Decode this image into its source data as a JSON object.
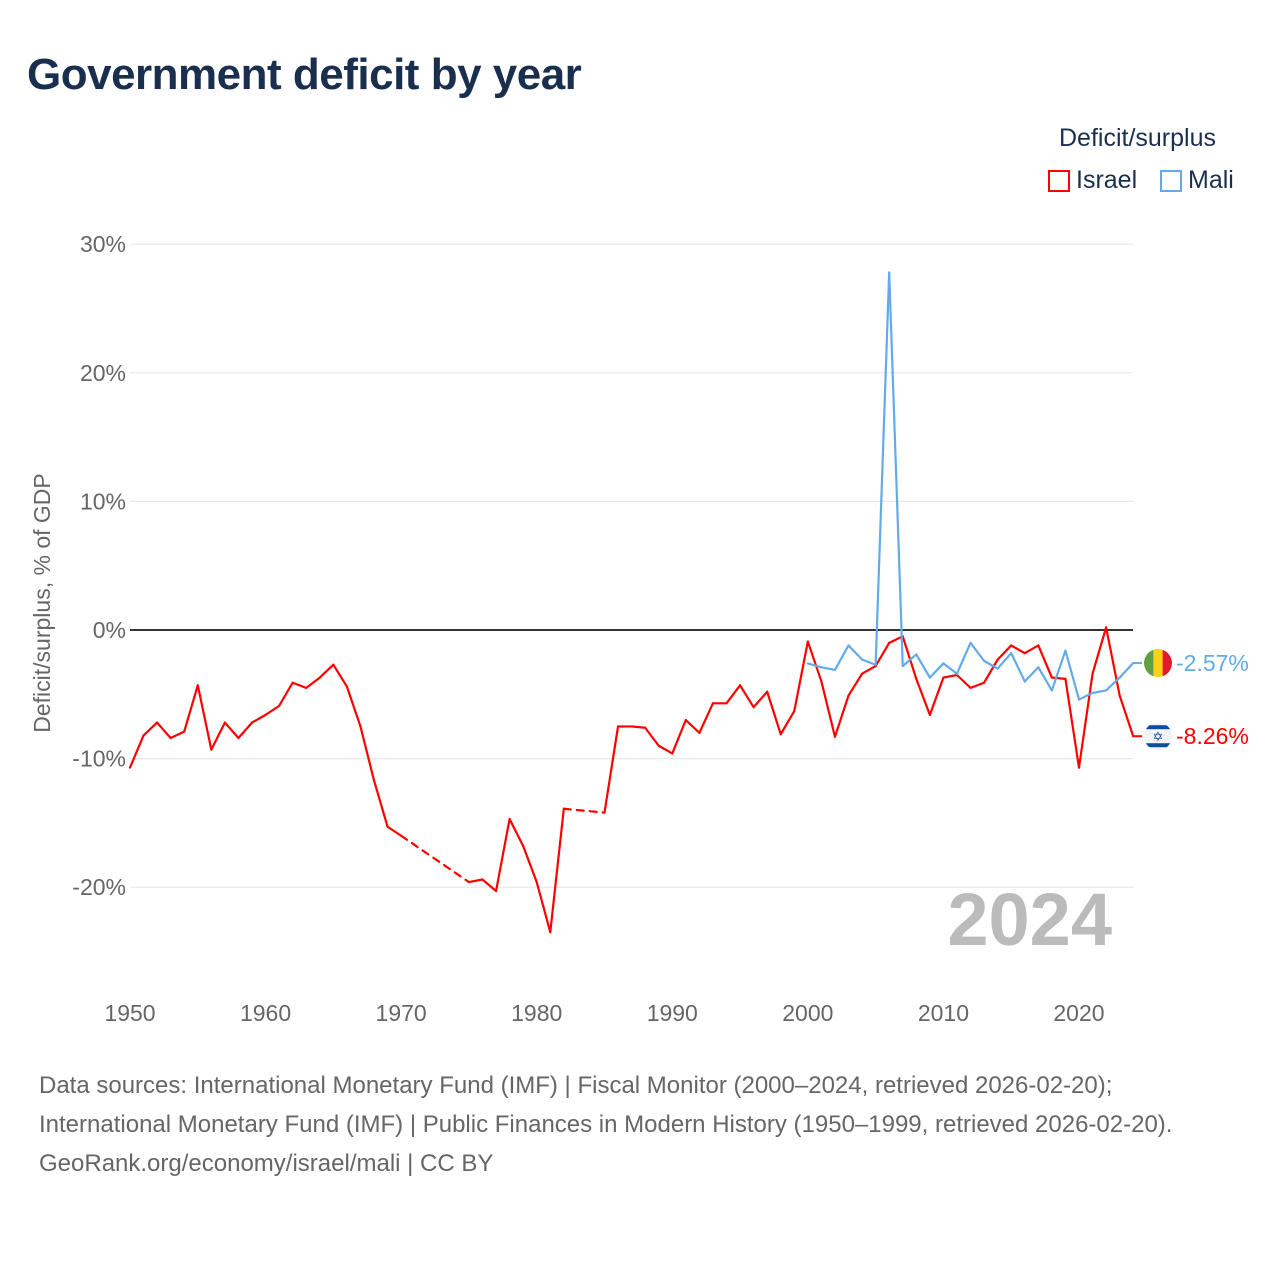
{
  "title": "Government deficit by year",
  "legend": {
    "title": "Deficit/surplus"
  },
  "footer": {
    "line1": "Data sources: International Monetary Fund (IMF) | Fiscal Monitor (2000–2024, retrieved 2026-02-20);",
    "line2": "International Monetary Fund (IMF) | Public Finances in Modern History (1950–1999, retrieved 2026-02-20).",
    "line3": "GeoRank.org/economy/israel/mali | CC BY"
  },
  "chart_data": {
    "type": "line",
    "title": "Government deficit by year",
    "ylabel": "Deficit/surplus, % of GDP",
    "xlabel": "",
    "xlim": [
      1950,
      2024
    ],
    "ylim": [
      -27,
      30
    ],
    "yticks": [
      30,
      20,
      10,
      0,
      -10,
      -20
    ],
    "ytick_labels": [
      "30%",
      "20%",
      "10%",
      "0%",
      "-10%",
      "-20%"
    ],
    "xticks": [
      1950,
      1960,
      1970,
      1980,
      1990,
      2000,
      2010,
      2020
    ],
    "year_label": "2024",
    "legend_position": "top-right",
    "series": [
      {
        "name": "Israel",
        "color": "#ff0000",
        "end_label": "-8.26%",
        "x": [
          1950,
          1951,
          1952,
          1953,
          1954,
          1955,
          1956,
          1957,
          1958,
          1959,
          1960,
          1961,
          1962,
          1963,
          1964,
          1965,
          1966,
          1967,
          1968,
          1969,
          1970,
          1975,
          1976,
          1977,
          1978,
          1979,
          1980,
          1981,
          1982,
          1985,
          1986,
          1987,
          1988,
          1989,
          1990,
          1991,
          1992,
          1993,
          1994,
          1995,
          1996,
          1997,
          1998,
          1999,
          2000,
          2001,
          2002,
          2003,
          2004,
          2005,
          2006,
          2007,
          2008,
          2009,
          2010,
          2011,
          2012,
          2013,
          2014,
          2015,
          2016,
          2017,
          2018,
          2019,
          2020,
          2021,
          2022,
          2023,
          2024
        ],
        "values": [
          -10.7,
          -8.2,
          -7.2,
          -8.4,
          -7.9,
          -4.3,
          -9.3,
          -7.2,
          -8.4,
          -7.2,
          -6.6,
          -5.9,
          -4.1,
          -4.5,
          -3.7,
          -2.7,
          -4.4,
          -7.5,
          -11.7,
          -15.3,
          -16.0,
          -19.6,
          -19.4,
          -20.3,
          -14.7,
          -16.8,
          -19.6,
          -23.5,
          -13.9,
          -14.2,
          -7.5,
          -7.5,
          -7.6,
          -9.0,
          -9.6,
          -7.0,
          -8.0,
          -5.7,
          -5.7,
          -4.3,
          -6.0,
          -4.8,
          -8.1,
          -6.3,
          -0.9,
          -4.0,
          -8.3,
          -5.1,
          -3.4,
          -2.8,
          -1.0,
          -0.5,
          -3.8,
          -6.6,
          -3.7,
          -3.5,
          -4.5,
          -4.1,
          -2.3,
          -1.2,
          -1.8,
          -1.2,
          -3.7,
          -3.8,
          -10.7,
          -3.4,
          0.2,
          -5.1,
          -8.26
        ]
      },
      {
        "name": "Mali",
        "color": "#62aaea",
        "end_label": "-2.57%",
        "x": [
          2000,
          2001,
          2002,
          2003,
          2004,
          2005,
          2006,
          2007,
          2008,
          2009,
          2010,
          2011,
          2012,
          2013,
          2014,
          2015,
          2016,
          2017,
          2018,
          2019,
          2020,
          2021,
          2022,
          2023,
          2024
        ],
        "values": [
          -2.6,
          -2.9,
          -3.1,
          -1.2,
          -2.3,
          -2.7,
          27.8,
          -2.8,
          -1.9,
          -3.7,
          -2.6,
          -3.4,
          -1.0,
          -2.4,
          -3.0,
          -1.8,
          -4.0,
          -2.9,
          -4.7,
          -1.6,
          -5.4,
          -4.9,
          -4.7,
          -3.7,
          -2.57
        ]
      }
    ]
  }
}
